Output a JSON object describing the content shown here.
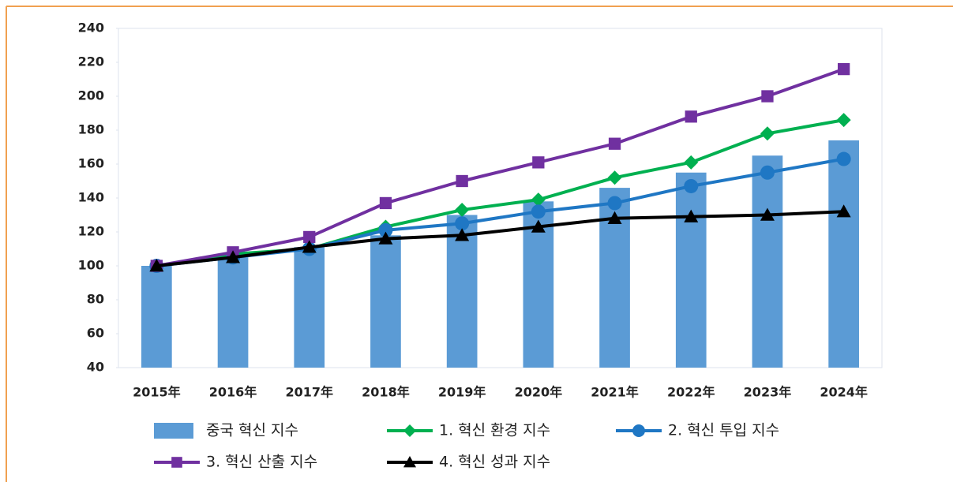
{
  "chart_data": {
    "type": "bar_line",
    "categories": [
      "2015年",
      "2016年",
      "2017年",
      "2018年",
      "2019年",
      "2020年",
      "2021年",
      "2022年",
      "2023年",
      "2024年"
    ],
    "ylim": [
      40,
      240
    ],
    "yticks": [
      40,
      60,
      80,
      100,
      120,
      140,
      160,
      180,
      200,
      220,
      240
    ],
    "series": [
      {
        "name": "중국 혁신 지수",
        "kind": "bar",
        "color": "#5b9bd5",
        "values": [
          100,
          105,
          111,
          118,
          130,
          138,
          146,
          155,
          165,
          174
        ]
      },
      {
        "name": "1. 혁신 환경 지수",
        "kind": "line",
        "marker": "diamond",
        "color": "#00b050",
        "values": [
          100,
          107,
          110,
          123,
          133,
          139,
          152,
          161,
          178,
          186
        ]
      },
      {
        "name": "2. 혁신 투입 지수",
        "kind": "line",
        "marker": "circle",
        "color": "#1f77c4",
        "values": [
          100,
          105,
          110,
          121,
          125,
          132,
          137,
          147,
          155,
          163
        ]
      },
      {
        "name": "3. 혁신 산출 지수",
        "kind": "line",
        "marker": "square",
        "color": "#7030a0",
        "values": [
          100,
          108,
          117,
          137,
          150,
          161,
          172,
          188,
          200,
          216
        ]
      },
      {
        "name": "4. 혁신 성과 지수",
        "kind": "line",
        "marker": "triangle",
        "color": "#000000",
        "values": [
          100,
          105,
          111,
          116,
          118,
          123,
          128,
          129,
          130,
          132
        ]
      }
    ]
  }
}
